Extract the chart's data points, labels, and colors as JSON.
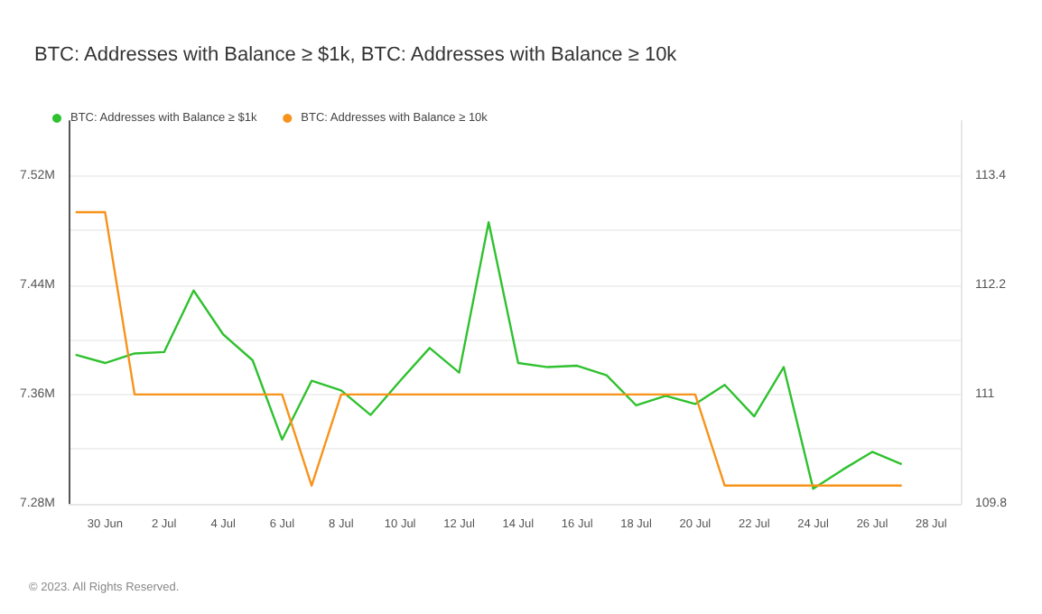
{
  "chart_data": {
    "type": "line",
    "title": "BTC: Addresses with Balance ≥ $1k, BTC: Addresses with Balance ≥ 10k",
    "x": [
      "2023-06-29",
      "2023-06-30",
      "2023-07-01",
      "2023-07-02",
      "2023-07-03",
      "2023-07-04",
      "2023-07-05",
      "2023-07-06",
      "2023-07-07",
      "2023-07-08",
      "2023-07-09",
      "2023-07-10",
      "2023-07-11",
      "2023-07-12",
      "2023-07-13",
      "2023-07-14",
      "2023-07-15",
      "2023-07-16",
      "2023-07-17",
      "2023-07-18",
      "2023-07-19",
      "2023-07-20",
      "2023-07-21",
      "2023-07-22",
      "2023-07-23",
      "2023-07-24",
      "2023-07-25",
      "2023-07-26",
      "2023-07-27"
    ],
    "series": [
      {
        "name": "BTC: Addresses with Balance ≥ $1k",
        "color": "#2fc12f",
        "values": [
          7.389,
          7.383,
          7.39,
          7.391,
          7.436,
          7.404,
          7.385,
          7.327,
          7.37,
          7.363,
          7.345,
          7.37,
          7.394,
          7.376,
          7.486,
          7.383,
          7.38,
          7.381,
          7.374,
          7.352,
          7.359,
          7.353,
          7.367,
          7.344,
          7.38,
          7.291,
          7.305,
          7.318,
          7.309
        ]
      },
      {
        "name": "BTC: Addresses with Balance ≥ 10k",
        "color": "#f7931a",
        "axis": "y2",
        "values": [
          113,
          113,
          111,
          111,
          111,
          111,
          111,
          111,
          110,
          111,
          111,
          111,
          111,
          111,
          111,
          111,
          111,
          111,
          111,
          111,
          111,
          111,
          110,
          110,
          110,
          110,
          110,
          110,
          110
        ]
      }
    ],
    "xlim": [
      "2023-06-28T19:00",
      "2023-07-29T00:00"
    ],
    "xticks": [
      {
        "value": "2023-06-30",
        "label": "30 Jun"
      },
      {
        "value": "2023-07-02",
        "label": "2 Jul"
      },
      {
        "value": "2023-07-04",
        "label": "4 Jul"
      },
      {
        "value": "2023-07-06",
        "label": "6 Jul"
      },
      {
        "value": "2023-07-08",
        "label": "8 Jul"
      },
      {
        "value": "2023-07-10",
        "label": "10 Jul"
      },
      {
        "value": "2023-07-12",
        "label": "12 Jul"
      },
      {
        "value": "2023-07-14",
        "label": "14 Jul"
      },
      {
        "value": "2023-07-16",
        "label": "16 Jul"
      },
      {
        "value": "2023-07-18",
        "label": "18 Jul"
      },
      {
        "value": "2023-07-20",
        "label": "20 Jul"
      },
      {
        "value": "2023-07-22",
        "label": "22 Jul"
      },
      {
        "value": "2023-07-24",
        "label": "24 Jul"
      },
      {
        "value": "2023-07-26",
        "label": "26 Jul"
      },
      {
        "value": "2023-07-28",
        "label": "28 Jul"
      }
    ],
    "ylim": [
      7.28,
      7.56
    ],
    "yticks": [
      {
        "value": 7.28,
        "label": "7.28M"
      },
      {
        "value": 7.32,
        "label": null
      },
      {
        "value": 7.36,
        "label": "7.36M"
      },
      {
        "value": 7.4,
        "label": null
      },
      {
        "value": 7.44,
        "label": "7.44M"
      },
      {
        "value": 7.48,
        "label": null
      },
      {
        "value": 7.52,
        "label": "7.52M"
      }
    ],
    "y2lim": [
      109.8,
      114
    ],
    "y2ticks": [
      109.8,
      {
        "value": 110.4,
        "label": null
      },
      111,
      {
        "value": 111.6,
        "label": null
      },
      112.2,
      {
        "value": 112.8,
        "label": null
      },
      113.4
    ],
    "grid": "y",
    "legend": "top left",
    "marker": "none",
    "line_style": "solid",
    "annotations": [
      "© 2023. All Rights Reserved."
    ]
  }
}
